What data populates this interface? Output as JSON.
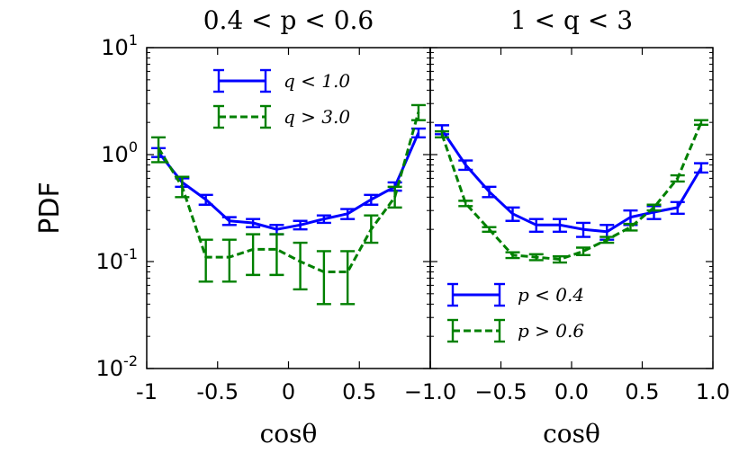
{
  "chart_data": [
    {
      "type": "line",
      "title": "0.4 < p < 0.6",
      "xlabel": "cosθ",
      "ylabel": "PDF",
      "xlim": [
        -1.0,
        1.0
      ],
      "ylim": [
        0.01,
        10
      ],
      "yscale": "log",
      "xtick_labels": [
        "-1",
        "-0.5",
        "0",
        "0.5",
        "1.0"
      ],
      "ytick_labels": [
        {
          "base": "10",
          "exp": "1"
        },
        {
          "base": "10",
          "exp": "0"
        },
        {
          "base": "10",
          "exp": "-1"
        },
        {
          "base": "10",
          "exp": "-2"
        }
      ],
      "legend_position": "upper-center",
      "series": [
        {
          "name": "q < 1.0",
          "legend_label": "q < 1.0",
          "color": "#0000ff",
          "dash": "solid",
          "x": [
            -0.917,
            -0.75,
            -0.583,
            -0.417,
            -0.25,
            -0.083,
            0.083,
            0.25,
            0.417,
            0.583,
            0.75,
            0.917
          ],
          "y": [
            1.05,
            0.55,
            0.38,
            0.24,
            0.23,
            0.2,
            0.22,
            0.25,
            0.28,
            0.38,
            0.5,
            1.6
          ],
          "err_lo": [
            0.95,
            0.5,
            0.34,
            0.22,
            0.21,
            0.18,
            0.2,
            0.23,
            0.25,
            0.34,
            0.46,
            1.45
          ],
          "err_hi": [
            1.15,
            0.6,
            0.42,
            0.26,
            0.25,
            0.22,
            0.24,
            0.27,
            0.31,
            0.42,
            0.55,
            1.75
          ]
        },
        {
          "name": "q > 3.0",
          "legend_label": "q > 3.0",
          "color": "#008000",
          "dash": "dashed",
          "x": [
            -0.917,
            -0.75,
            -0.583,
            -0.417,
            -0.25,
            -0.083,
            0.083,
            0.25,
            0.417,
            0.583,
            0.75,
            0.917
          ],
          "y": [
            1.15,
            0.5,
            0.11,
            0.11,
            0.13,
            0.13,
            0.1,
            0.08,
            0.08,
            0.2,
            0.4,
            2.5
          ],
          "err_lo": [
            0.85,
            0.4,
            0.065,
            0.065,
            0.075,
            0.075,
            0.055,
            0.04,
            0.04,
            0.15,
            0.32,
            2.1
          ],
          "err_hi": [
            1.45,
            0.62,
            0.16,
            0.16,
            0.18,
            0.18,
            0.15,
            0.125,
            0.125,
            0.27,
            0.5,
            2.9
          ]
        }
      ]
    },
    {
      "type": "line",
      "title": "1 < q < 3",
      "xlabel": "cosθ",
      "xlim": [
        -1.0,
        1.0
      ],
      "ylim": [
        0.01,
        10
      ],
      "yscale": "log",
      "xtick_labels": [
        "−1.0",
        "−0.5",
        "0.0",
        "0.5",
        "1.0"
      ],
      "legend_position": "lower-left",
      "series": [
        {
          "name": "p < 0.4",
          "legend_label": "p < 0.4",
          "color": "#0000ff",
          "dash": "solid",
          "x": [
            -0.917,
            -0.75,
            -0.583,
            -0.417,
            -0.25,
            -0.083,
            0.083,
            0.25,
            0.417,
            0.583,
            0.75,
            0.917
          ],
          "y": [
            1.7,
            0.8,
            0.45,
            0.28,
            0.22,
            0.22,
            0.2,
            0.19,
            0.26,
            0.29,
            0.32,
            0.75
          ],
          "err_lo": [
            1.55,
            0.72,
            0.4,
            0.24,
            0.19,
            0.19,
            0.17,
            0.16,
            0.22,
            0.25,
            0.28,
            0.68
          ],
          "err_hi": [
            1.88,
            0.88,
            0.5,
            0.32,
            0.25,
            0.25,
            0.23,
            0.22,
            0.3,
            0.33,
            0.36,
            0.83
          ]
        },
        {
          "name": "p > 0.6",
          "legend_label": "p > 0.6",
          "color": "#008000",
          "dash": "dashed",
          "x": [
            -0.917,
            -0.75,
            -0.583,
            -0.417,
            -0.25,
            -0.083,
            0.083,
            0.25,
            0.417,
            0.583,
            0.75,
            0.917
          ],
          "y": [
            1.55,
            0.35,
            0.2,
            0.115,
            0.11,
            0.105,
            0.125,
            0.16,
            0.21,
            0.32,
            0.6,
            2.0
          ],
          "err_lo": [
            1.45,
            0.33,
            0.19,
            0.108,
            0.103,
            0.098,
            0.115,
            0.15,
            0.195,
            0.3,
            0.56,
            1.9
          ],
          "err_hi": [
            1.65,
            0.37,
            0.21,
            0.122,
            0.117,
            0.112,
            0.135,
            0.17,
            0.225,
            0.34,
            0.64,
            2.1
          ]
        }
      ]
    }
  ]
}
